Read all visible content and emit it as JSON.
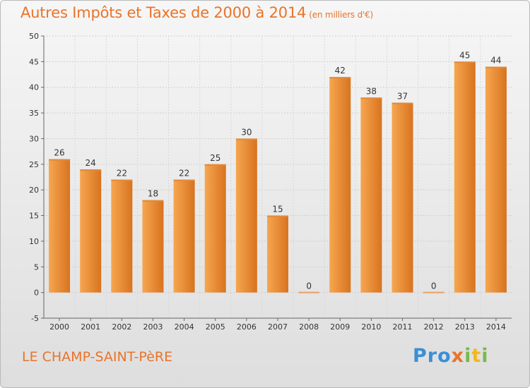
{
  "header": {
    "title": "Autres Impôts et Taxes de 2000 à 2014",
    "unit": "(en milliers d'€)"
  },
  "footer": {
    "commune": "LE CHAMP-SAINT-PèRE",
    "logo": {
      "p1": "Pro",
      "p2": "x",
      "p3": "i",
      "p4": "t",
      "p5": "i"
    }
  },
  "colors": {
    "bar_light": "#f7a650",
    "bar_dark": "#d8731f",
    "accent": "#e8742a"
  },
  "chart_data": {
    "type": "bar",
    "title": "Autres Impôts et Taxes de 2000 à 2014",
    "subtitle": "(en milliers d'€)",
    "categories": [
      "2000",
      "2001",
      "2002",
      "2003",
      "2004",
      "2005",
      "2006",
      "2007",
      "2008",
      "2009",
      "2010",
      "2011",
      "2012",
      "2013",
      "2014"
    ],
    "values": [
      26,
      24,
      22,
      18,
      22,
      25,
      30,
      15,
      0,
      42,
      38,
      37,
      0,
      45,
      44
    ],
    "ylim": [
      -5,
      50
    ],
    "yticks": [
      -5,
      0,
      5,
      10,
      15,
      20,
      25,
      30,
      35,
      40,
      45,
      50
    ],
    "grid": true,
    "legend": "none"
  }
}
